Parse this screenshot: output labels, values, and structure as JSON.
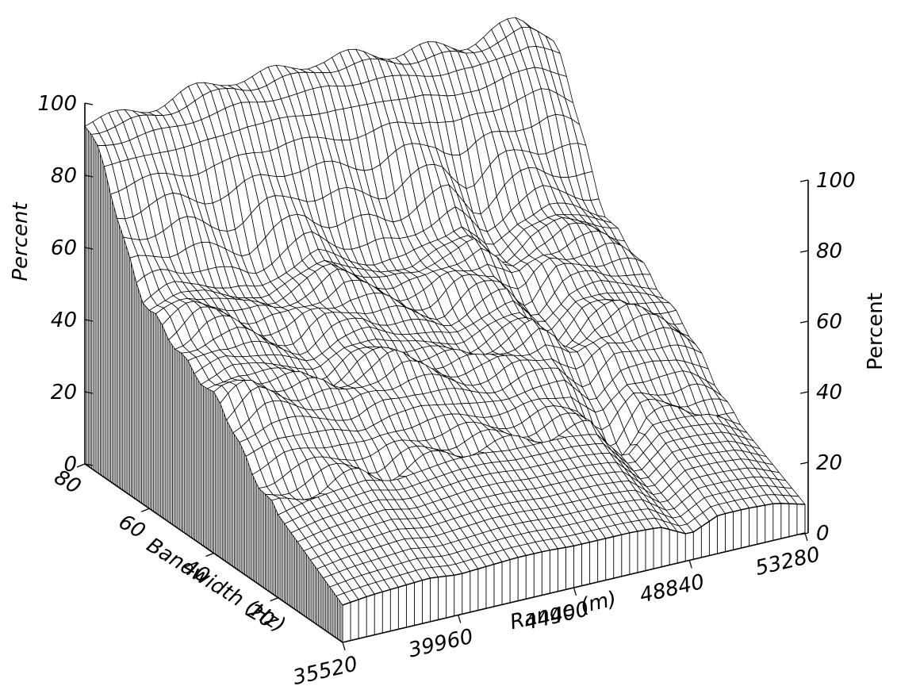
{
  "chart_data": {
    "type": "surface",
    "xlabel": "Range (m)",
    "ylabel": "Bandwidth (Hz)",
    "zlabel": "Percent",
    "x_ticks": [
      "35520",
      "39960",
      "44400",
      "48840",
      "53280"
    ],
    "y_ticks": [
      "20",
      "40",
      "60",
      "80"
    ],
    "z_ticks": [
      "0",
      "20",
      "40",
      "60",
      "80",
      "100"
    ],
    "xlim": [
      35520,
      53280
    ],
    "ylim": [
      0,
      80
    ],
    "zlim": [
      0,
      100
    ],
    "grid": false,
    "front_profile": {
      "x_m": [
        35520,
        36630,
        37740,
        38850,
        39960,
        41070,
        42180,
        43290,
        44400,
        45510,
        46620,
        47730,
        48840,
        49950,
        51060,
        52170,
        53280
      ],
      "percent_at_20hz": [
        23,
        25,
        26,
        27,
        25,
        26,
        27,
        27,
        26,
        26,
        26,
        25,
        16,
        24,
        24,
        23,
        18
      ],
      "percent_at_40hz": [
        43,
        47,
        45,
        43,
        40,
        44,
        45,
        42,
        40,
        38,
        41,
        43,
        35,
        42,
        43,
        41,
        37
      ],
      "percent_at_60hz": [
        55,
        58,
        57,
        53,
        51,
        55,
        58,
        54,
        51,
        50,
        54,
        56,
        47,
        54,
        56,
        54,
        50
      ],
      "percent_at_80hz": [
        95,
        94,
        95,
        96,
        97,
        98,
        97,
        97,
        98,
        97,
        96,
        95,
        94,
        93,
        95,
        96,
        92
      ]
    },
    "back_wall_percent": 95
  }
}
